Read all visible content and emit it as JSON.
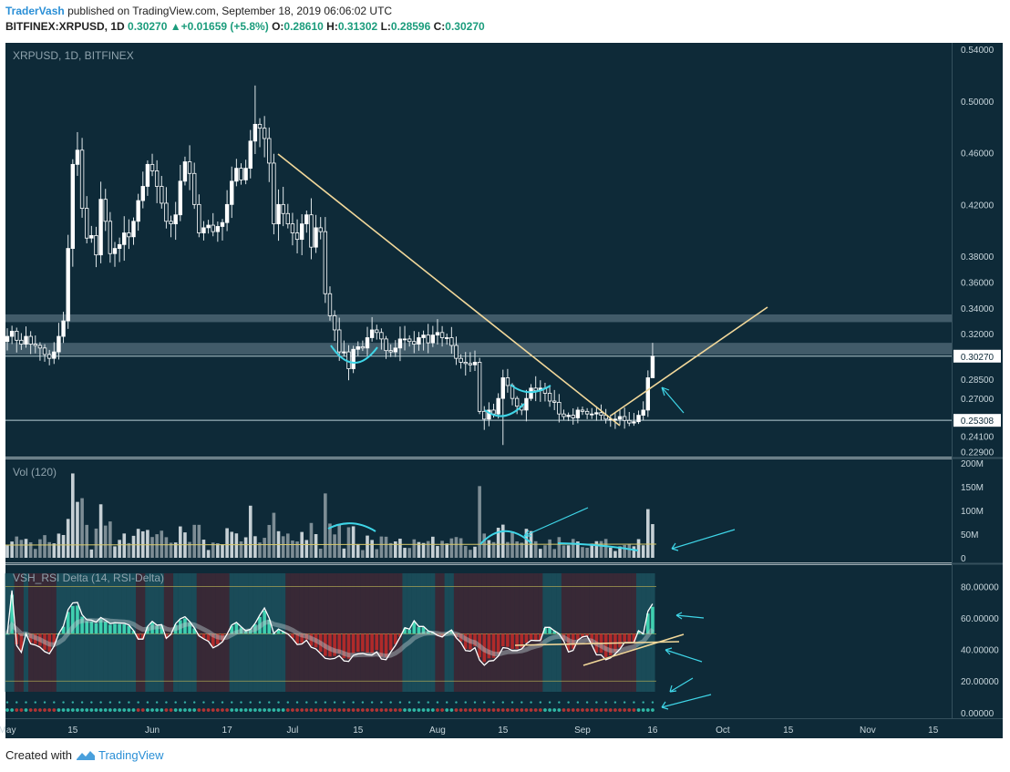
{
  "header": {
    "author": "TraderVash",
    "published_text": "published on TradingView.com, September 18, 2019 06:06:02 UTC",
    "symbol": "BITFINEX:XRPUSD, 1D",
    "last": "0.30270",
    "change": "+0.01659 (+5.8%)",
    "o_label": "O:",
    "o": "0.28610",
    "h_label": "H:",
    "h": "0.31302",
    "l_label": "L:",
    "l": "0.28596",
    "c_label": "C:",
    "c": "0.30270"
  },
  "colors": {
    "background": "#0e2a38",
    "bull": "#ffffff",
    "bear": "#ffffff",
    "trend_line": "#f2d89a",
    "annotation": "#3fd6e8",
    "zone": "#4a6472",
    "rsi_line": "#ffffff",
    "rsi_bull_bar": "#3fd0b0",
    "rsi_bear_bar": "#b02a2a",
    "rsi_band": "#b8c8cc"
  },
  "chart_data": [
    {
      "type": "candlestick",
      "title": "XRPUSD, 1D, BITFINEX",
      "ylim": [
        0.225,
        0.545
      ],
      "y_ticks": [
        "0.54000",
        "0.50000",
        "0.46000",
        "0.42000",
        "0.38000",
        "0.36000",
        "0.34000",
        "0.32000",
        "0.28500",
        "0.27000",
        "0.24100",
        "0.22900"
      ],
      "y_tick_values": [
        0.54,
        0.5,
        0.46,
        0.42,
        0.38,
        0.36,
        0.34,
        0.32,
        0.285,
        0.27,
        0.241,
        0.229
      ],
      "price_labels": [
        {
          "label": "0.30270",
          "value": 0.3027
        },
        {
          "label": "0.25308",
          "value": 0.25308
        }
      ],
      "horizontal_lines": [
        0.3027,
        0.25308
      ],
      "zones": [
        [
          0.329,
          0.335
        ],
        [
          0.304,
          0.313
        ]
      ],
      "start_date": "2019-05-01",
      "closes": [
        0.318,
        0.322,
        0.315,
        0.312,
        0.318,
        0.312,
        0.311,
        0.309,
        0.304,
        0.301,
        0.306,
        0.318,
        0.33,
        0.386,
        0.451,
        0.462,
        0.417,
        0.394,
        0.396,
        0.381,
        0.424,
        0.407,
        0.382,
        0.386,
        0.389,
        0.398,
        0.395,
        0.407,
        0.423,
        0.434,
        0.451,
        0.446,
        0.434,
        0.421,
        0.407,
        0.405,
        0.412,
        0.438,
        0.453,
        0.444,
        0.42,
        0.398,
        0.402,
        0.404,
        0.399,
        0.403,
        0.406,
        0.42,
        0.438,
        0.448,
        0.439,
        0.448,
        0.469,
        0.482,
        0.479,
        0.471,
        0.452,
        0.405,
        0.42,
        0.413,
        0.405,
        0.398,
        0.393,
        0.405,
        0.412,
        0.387,
        0.402,
        0.399,
        0.351,
        0.334,
        0.323,
        0.306,
        0.306,
        0.293,
        0.308,
        0.31,
        0.309,
        0.317,
        0.323,
        0.321,
        0.316,
        0.307,
        0.306,
        0.309,
        0.316,
        0.316,
        0.314,
        0.312,
        0.317,
        0.319,
        0.313,
        0.319,
        0.321,
        0.317,
        0.317,
        0.311,
        0.301,
        0.298,
        0.297,
        0.296,
        0.298,
        0.26,
        0.254,
        0.261,
        0.258,
        0.27,
        0.286,
        0.28,
        0.27,
        0.264,
        0.261,
        0.27,
        0.278,
        0.276,
        0.278,
        0.274,
        0.268,
        0.267,
        0.258,
        0.256,
        0.257,
        0.255,
        0.261,
        0.26,
        0.258,
        0.258,
        0.259,
        0.257,
        0.254,
        0.254,
        0.254,
        0.256,
        0.253,
        0.251,
        0.252,
        0.257,
        0.261,
        0.286,
        0.3027
      ],
      "high": 0.512,
      "low": 0.234
    },
    {
      "type": "bar",
      "title": "Vol (120)",
      "y_ticks": [
        "200M",
        "150M",
        "100M",
        "50M",
        "0"
      ],
      "y_tick_values": [
        200,
        150,
        100,
        50,
        0
      ],
      "ylim": [
        0,
        200
      ],
      "unit": "M",
      "moving_average": 27
    },
    {
      "type": "line",
      "title": "VSH_RSI Delta (14, RSI-Delta)",
      "y_ticks": [
        "80.00000",
        "60.00000",
        "40.00000",
        "20.00000",
        "0.00000"
      ],
      "y_tick_values": [
        80,
        60,
        40,
        20,
        0
      ],
      "ylim": [
        -3,
        93
      ],
      "levels": [
        80,
        50,
        20
      ]
    }
  ],
  "x_axis": {
    "ticks": [
      {
        "label": "May",
        "day": 0
      },
      {
        "label": "15",
        "day": 14
      },
      {
        "label": "Jun",
        "day": 31
      },
      {
        "label": "17",
        "day": 47
      },
      {
        "label": "Jul",
        "day": 61
      },
      {
        "label": "15",
        "day": 75
      },
      {
        "label": "Aug",
        "day": 92
      },
      {
        "label": "15",
        "day": 106
      },
      {
        "label": "Sep",
        "day": 123
      },
      {
        "label": "16",
        "day": 138
      },
      {
        "label": "Oct",
        "day": 153
      },
      {
        "label": "15",
        "day": 167
      },
      {
        "label": "Nov",
        "day": 184
      },
      {
        "label": "15",
        "day": 198
      }
    ]
  },
  "footer": {
    "created_with": "Created with",
    "brand": "TradingView"
  }
}
